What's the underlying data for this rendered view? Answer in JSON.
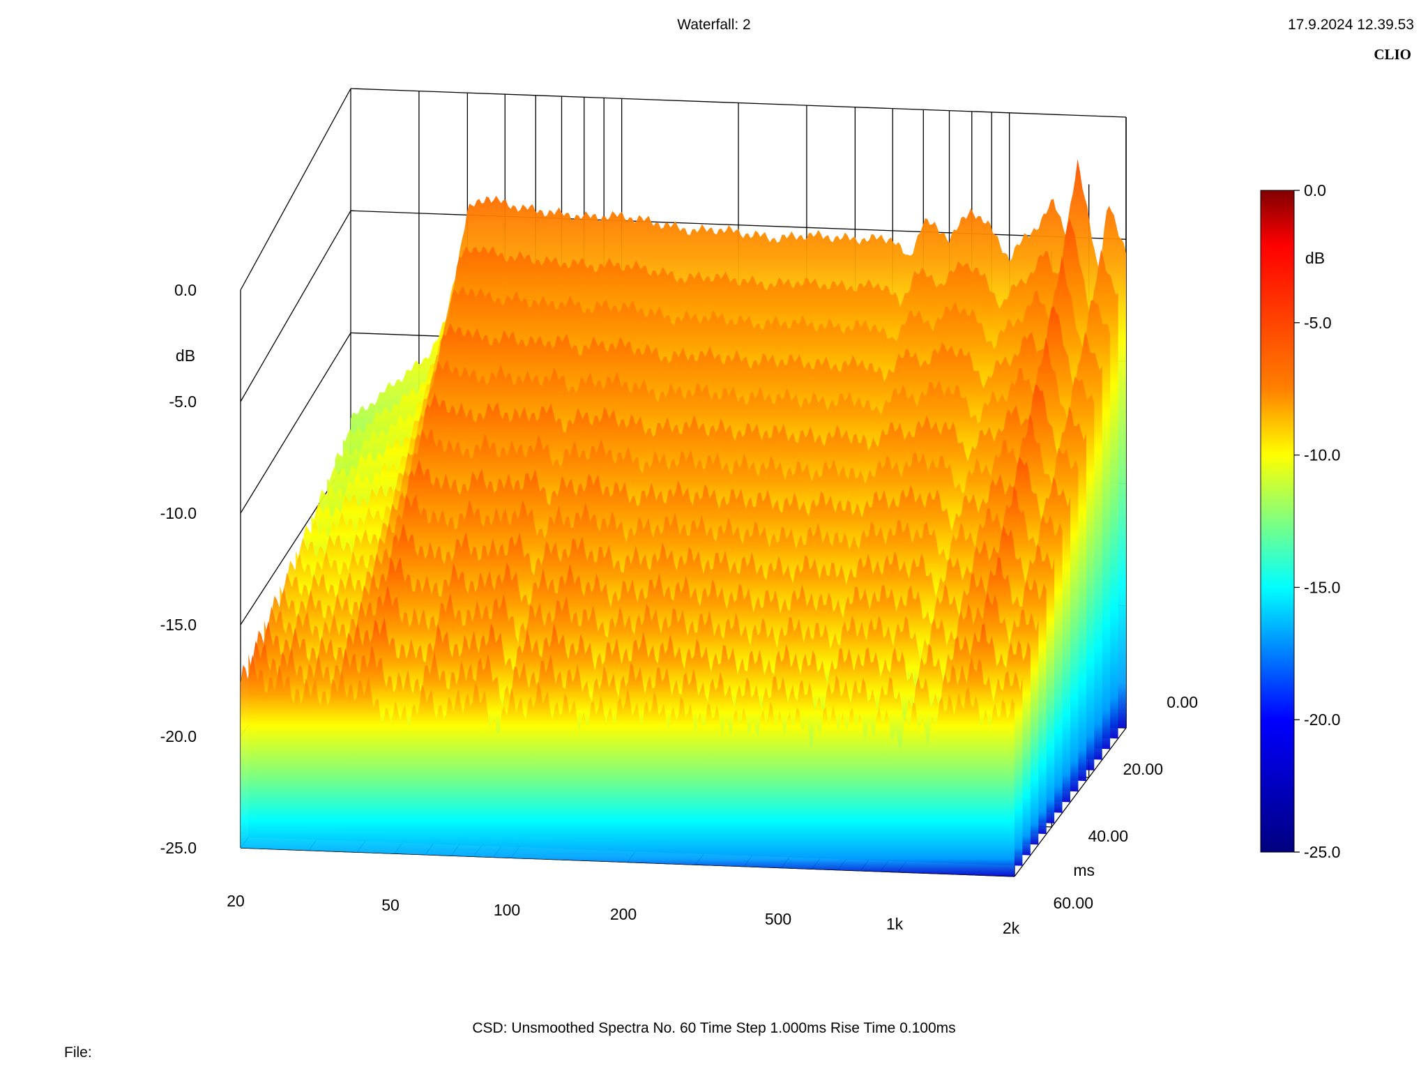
{
  "header": {
    "title": "Waterfall: 2",
    "timestamp": "17.9.2024 12.39.53",
    "brand": "CLIO"
  },
  "footer": {
    "settings": "CSD:   Unsmoothed   Spectra No. 60   Time Step 1.000ms   Rise Time 0.100ms",
    "file_label": "File:"
  },
  "chart_data": {
    "type": "waterfall",
    "title": "Waterfall: 2",
    "x_axis": {
      "scale": "log",
      "range_hz": [
        20,
        2000
      ],
      "ticks": [
        {
          "value": 20,
          "label": "20"
        },
        {
          "value": 50,
          "label": "50"
        },
        {
          "value": 100,
          "label": "100"
        },
        {
          "value": 200,
          "label": "200"
        },
        {
          "value": 500,
          "label": "500"
        },
        {
          "value": 1000,
          "label": "1k"
        },
        {
          "value": 2000,
          "label": "2k"
        }
      ]
    },
    "z_axis": {
      "label": "ms",
      "range": [
        0,
        60
      ],
      "ticks": [
        {
          "value": 0,
          "label": "0.00"
        },
        {
          "value": 20,
          "label": "20.00"
        },
        {
          "value": 40,
          "label": "40.00"
        },
        {
          "value": 60,
          "label": "60.00"
        }
      ]
    },
    "y_axis": {
      "label": "dB",
      "range": [
        -25,
        0
      ],
      "ticks": [
        {
          "value": 0,
          "label": "0.0"
        },
        {
          "value": -5,
          "label": "-5.0"
        },
        {
          "value": -10,
          "label": "-10.0"
        },
        {
          "value": -15,
          "label": "-15.0"
        },
        {
          "value": -20,
          "label": "-20.0"
        },
        {
          "value": -25,
          "label": "-25.0"
        }
      ]
    },
    "colorbar": {
      "label": "dB",
      "range": [
        -25,
        0
      ],
      "ticks": [
        {
          "value": 0,
          "label": "0.0"
        },
        {
          "value": -5,
          "label": "-5.0"
        },
        {
          "value": -10,
          "label": "-10.0"
        },
        {
          "value": -15,
          "label": "-15.0"
        },
        {
          "value": -20,
          "label": "-20.0"
        },
        {
          "value": -25,
          "label": "-25.0"
        }
      ],
      "colors": [
        "#00007f",
        "#0000ff",
        "#00ffff",
        "#ffff00",
        "#ff7f00",
        "#ff0000",
        "#7f0000"
      ]
    },
    "spectra_count": 60,
    "time_step_ms": 1.0,
    "rise_time_ms": 0.1,
    "front_spectrum": {
      "time_ms": 0,
      "freq_hz": [
        20,
        22,
        25,
        28,
        31,
        35,
        40,
        45,
        50,
        60,
        70,
        80,
        100,
        120,
        150,
        180,
        200,
        250,
        300,
        400,
        500,
        550,
        600,
        700,
        800,
        900,
        1000,
        1100,
        1200,
        1300,
        1400,
        1500,
        1600,
        1700,
        1800,
        1900,
        2000
      ],
      "db": [
        -13.5,
        -13.0,
        -12.2,
        -11.5,
        -11.0,
        -9.5,
        -4.8,
        -4.2,
        -4.5,
        -4.7,
        -4.8,
        -4.9,
        -4.8,
        -5.0,
        -5.3,
        -5.2,
        -5.3,
        -5.5,
        -5.3,
        -5.4,
        -5.3,
        -6.2,
        -4.5,
        -5.2,
        -4.0,
        -4.8,
        -6.0,
        -5.0,
        -4.5,
        -3.5,
        -4.8,
        -2.0,
        -4.0,
        -6.5,
        -3.5,
        -4.5,
        -5.5
      ]
    },
    "back_spectrum": {
      "time_ms": 60,
      "freq_hz": [
        20,
        30,
        40,
        50,
        60,
        70,
        80,
        90,
        100,
        120,
        150,
        200,
        300,
        400,
        500,
        600,
        700,
        800,
        900,
        1000,
        1100,
        1200,
        1400,
        1600,
        1800,
        2000
      ],
      "db": [
        -17.0,
        -18.0,
        -17.5,
        -19.0,
        -18.0,
        -18.5,
        -17.5,
        -19.0,
        -18.2,
        -17.8,
        -18.5,
        -18.0,
        -18.3,
        -18.6,
        -18.2,
        -18.8,
        -18.0,
        -18.6,
        -18.2,
        -18.9,
        -18.0,
        -18.5,
        -17.0,
        -17.5,
        -18.0,
        -17.0
      ]
    }
  }
}
